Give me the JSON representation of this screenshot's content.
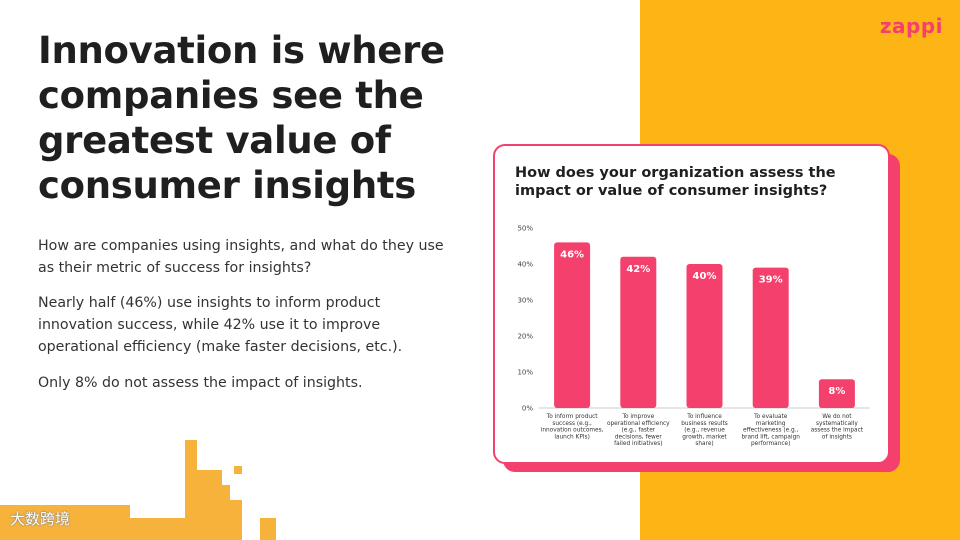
{
  "brand": {
    "logo_text": "zappi",
    "logo_color": "#F4406D"
  },
  "title": "Innovation is where companies see the greatest value of consumer insights",
  "paragraphs": [
    "How are companies using insights, and what do they use as their metric of success for insights?",
    "Nearly half (46%) use insights to inform product innovation success, while 42% use it to improve operational efficiency (make faster decisions, etc.).",
    "Only 8% do not assess the impact of insights."
  ],
  "watermark": "大数跨境",
  "colors": {
    "accent_pink": "#F4406D",
    "panel_yellow": "#FDB515"
  },
  "chart_data": {
    "type": "bar",
    "title": "How does your organization assess the impact or value of consumer insights?",
    "categories": [
      [
        "To inform product",
        "success (e.g.,",
        "innovation outcomes,",
        "launch KPIs)"
      ],
      [
        "To improve",
        "operational efficiency",
        "(e.g., faster",
        "decisions, fewer",
        "failed initiatives)"
      ],
      [
        "To influence",
        "business results",
        "(e.g., revenue",
        "growth, market",
        "share)"
      ],
      [
        "To evaluate",
        "marketing",
        "effectiveness (e.g.,",
        "brand lift, campaign",
        "performance)"
      ],
      [
        "We do not",
        "systematically",
        "assess the impact",
        "of insights"
      ]
    ],
    "values": [
      46,
      42,
      40,
      39,
      8
    ],
    "data_labels": [
      "46%",
      "42%",
      "40%",
      "39%",
      "8%"
    ],
    "y_ticks": [
      "0%",
      "10%",
      "20%",
      "30%",
      "40%",
      "50%"
    ],
    "ylim": [
      0,
      50
    ],
    "bar_color": "#F4406D",
    "grid": false
  }
}
